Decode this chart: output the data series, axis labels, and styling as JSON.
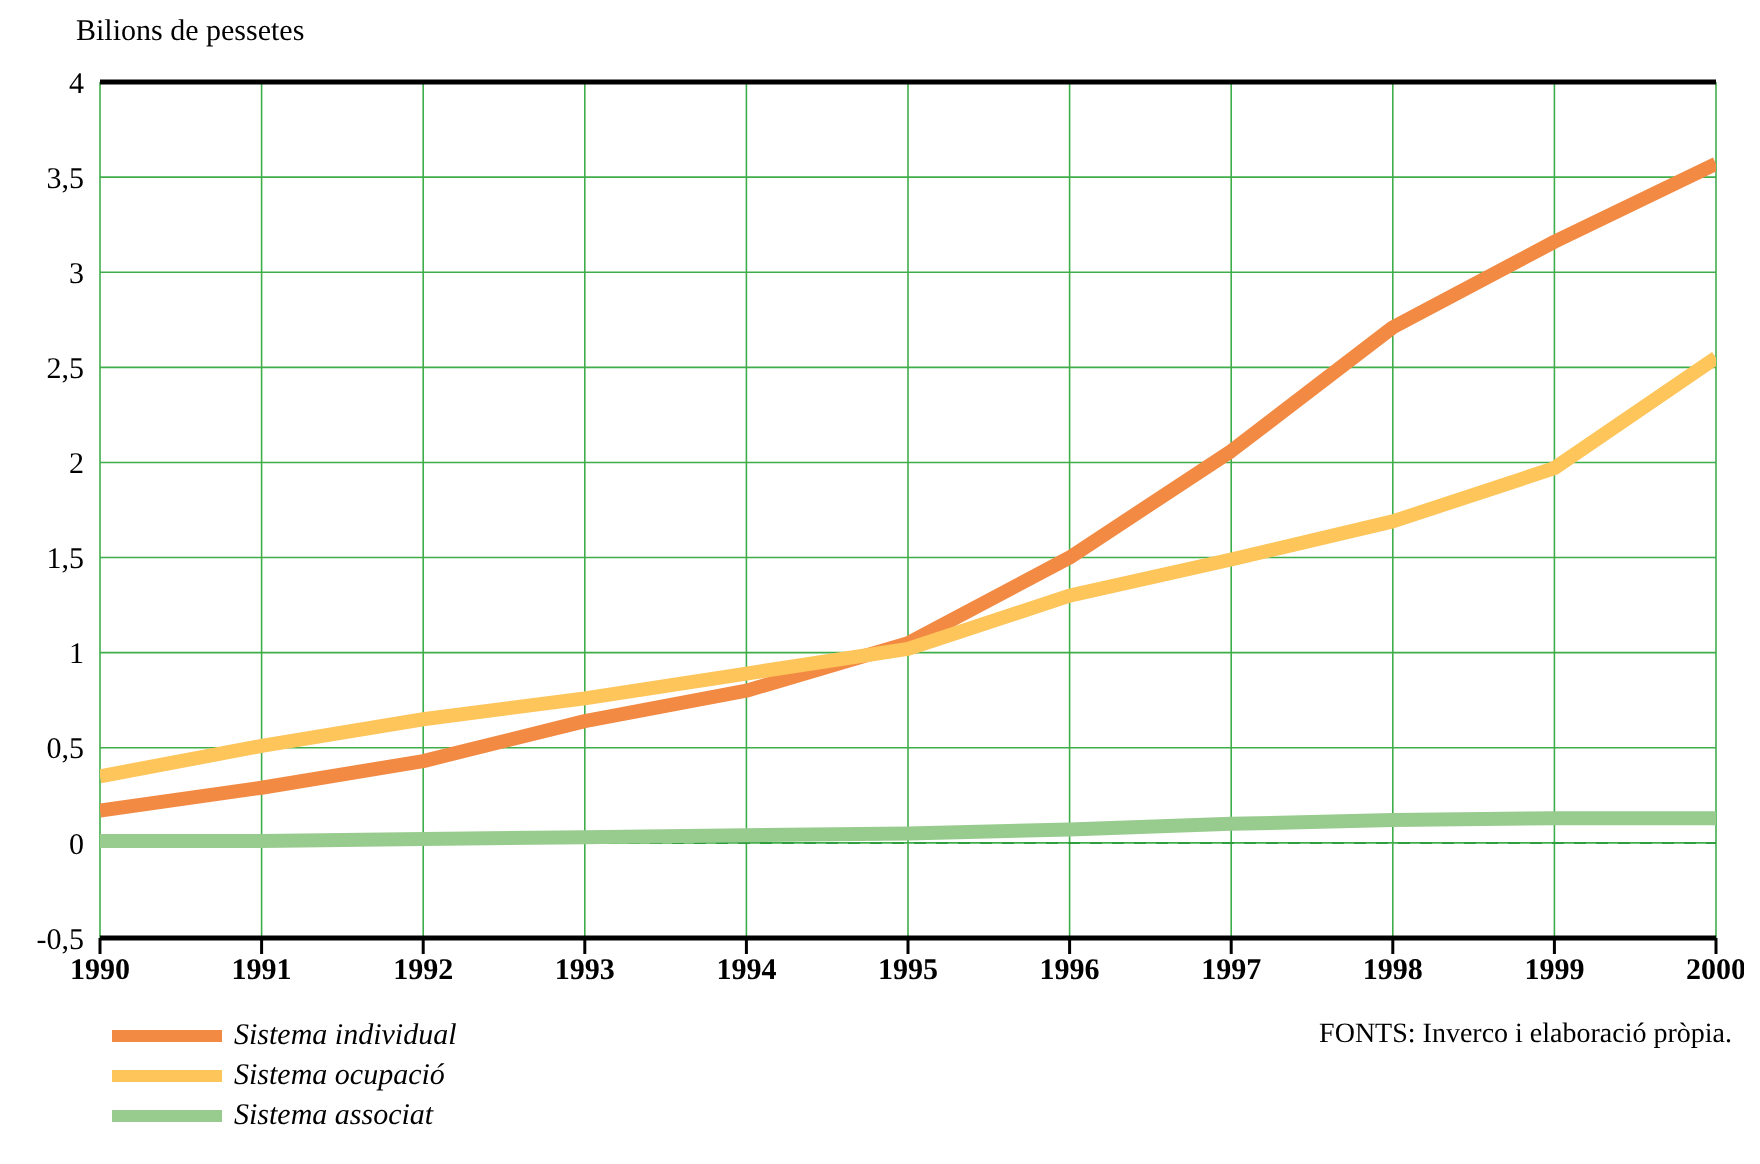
{
  "chart_data": {
    "type": "line",
    "ylabel": "Bilions de pessetes",
    "x": [
      1990,
      1991,
      1992,
      1993,
      1994,
      1995,
      1996,
      1997,
      1998,
      1999,
      2000
    ],
    "xlim": [
      1990,
      2000
    ],
    "xticks": [
      1990,
      1991,
      1992,
      1993,
      1994,
      1995,
      1996,
      1997,
      1998,
      1999,
      2000
    ],
    "ylim": [
      -0.5,
      4
    ],
    "yticks": [
      {
        "value": -0.5,
        "label": "-0,5"
      },
      0,
      {
        "value": 0.5,
        "label": "0,5"
      },
      1,
      {
        "value": 1.5,
        "label": "1,5"
      },
      2,
      {
        "value": 2.5,
        "label": "2,5"
      },
      3,
      {
        "value": 3.5,
        "label": "3,5"
      },
      4
    ],
    "series": [
      {
        "name": "Sistema individual",
        "color": "#f28a43",
        "values": [
          0.17,
          0.29,
          0.43,
          0.64,
          0.8,
          1.05,
          1.5,
          2.06,
          2.71,
          3.16,
          3.57
        ]
      },
      {
        "name": "Sistema ocupació",
        "color": "#fdc55a",
        "values": [
          0.35,
          0.51,
          0.65,
          0.76,
          0.89,
          1.02,
          1.3,
          1.49,
          1.69,
          1.97,
          2.55
        ]
      },
      {
        "name": "Sistema associat",
        "color": "#98cc8e",
        "values": [
          0.01,
          0.01,
          0.02,
          0.03,
          0.04,
          0.05,
          0.07,
          0.1,
          0.12,
          0.13,
          0.13
        ]
      }
    ],
    "grid": true,
    "legend": "bottom left",
    "marker": "none",
    "line_style": "solid",
    "ref_lines": [
      {
        "axis": "y",
        "value": 0,
        "color": "#2e9e3e",
        "line_style": "dashed"
      }
    ],
    "annotations": [
      "FONTS: Inverco i elaboració pròpia."
    ]
  }
}
